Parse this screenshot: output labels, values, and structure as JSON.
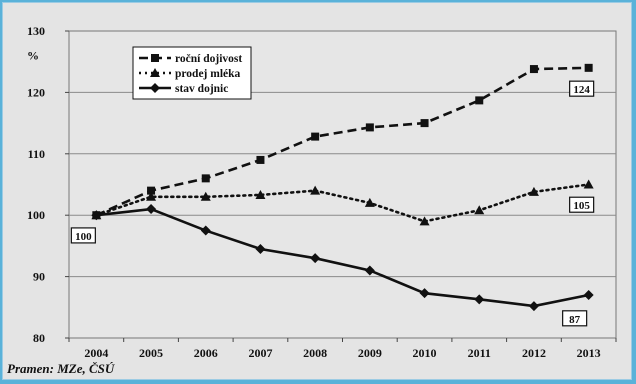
{
  "chart_data": {
    "type": "line",
    "title": "",
    "xlabel": "",
    "ylabel": "%",
    "x": [
      "2004",
      "2005",
      "2006",
      "2007",
      "2008",
      "2009",
      "2010",
      "2011",
      "2012",
      "2013"
    ],
    "ylim": [
      80,
      130
    ],
    "yticks": [
      "80",
      "90",
      "100",
      "110",
      "120",
      "130"
    ],
    "grid": true,
    "legend_position": "top-left",
    "series": [
      {
        "name": "roční dojivost",
        "marker": "square",
        "linestyle": "dashed",
        "values": [
          100,
          104,
          106,
          109,
          112.8,
          114.3,
          115,
          118.7,
          123.8,
          124
        ]
      },
      {
        "name": "prodej mléka",
        "marker": "triangle",
        "linestyle": "dotted",
        "values": [
          100,
          103,
          103,
          103.3,
          104,
          102,
          99,
          100.8,
          103.8,
          105
        ]
      },
      {
        "name": "stav dojnic",
        "marker": "diamond",
        "linestyle": "solid",
        "values": [
          100,
          101,
          97.5,
          94.5,
          93,
          91,
          87.3,
          86.3,
          85.2,
          87
        ]
      }
    ],
    "annotations": [
      "100",
      "124",
      "105",
      "87"
    ]
  },
  "source": "Pramen: MZe, ČSÚ",
  "colors": {
    "background": "#e4e4e4",
    "border": "#5ab2d9",
    "line": "#111111"
  }
}
